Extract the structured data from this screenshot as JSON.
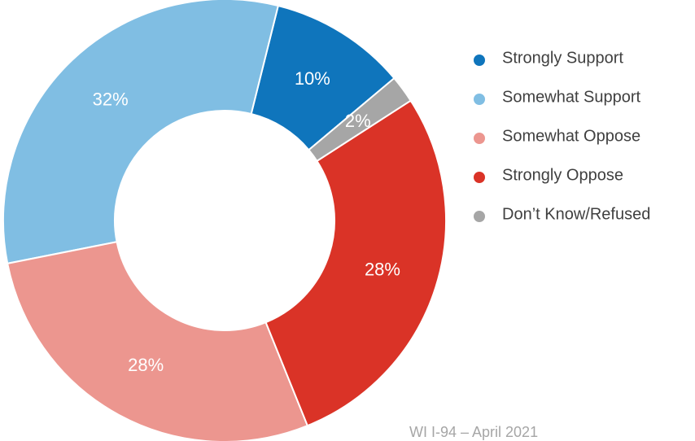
{
  "chart_data": {
    "type": "pie",
    "categories": [
      "Strongly Support",
      "Somewhat Support",
      "Somewhat Oppose",
      "Strongly Oppose",
      "Don’t Know/Refused"
    ],
    "values": [
      10,
      32,
      28,
      28,
      2
    ],
    "value_labels": [
      "10%",
      "32%",
      "28%",
      "28%",
      "2%"
    ],
    "colors": [
      "#0f75bc",
      "#80bee3",
      "#ec968f",
      "#da3327",
      "#a6a6a6"
    ],
    "donut": true,
    "legend": "right",
    "annotation": "WI I-94 – April 2021"
  }
}
